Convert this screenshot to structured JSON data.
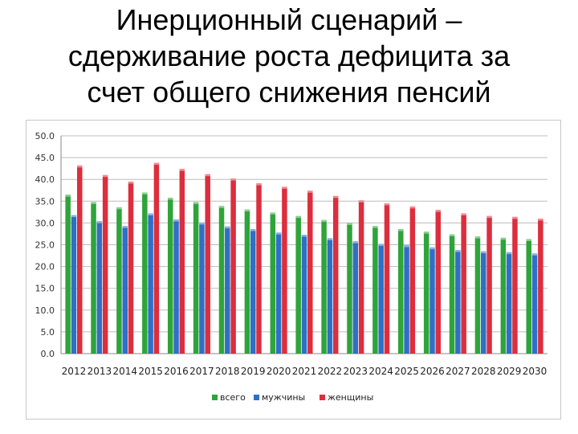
{
  "title_lines": [
    "Инерционный сценарий –",
    "сдерживание роста дефицита за",
    "счет общего снижения пенсий"
  ],
  "chart_data": {
    "type": "bar",
    "categories": [
      "2012",
      "2013",
      "2014",
      "2015",
      "2016",
      "2017",
      "2018",
      "2019",
      "2020",
      "2021",
      "2022",
      "2023",
      "2024",
      "2025",
      "2026",
      "2027",
      "2028",
      "2029",
      "2030"
    ],
    "series": [
      {
        "name": "всего",
        "color": "#2ea43a",
        "values": [
          36.5,
          34.8,
          33.6,
          37.0,
          35.8,
          34.8,
          33.9,
          33.1,
          32.4,
          31.6,
          30.7,
          30.0,
          29.3,
          28.6,
          28.0,
          27.4,
          26.9,
          26.6,
          26.3
        ]
      },
      {
        "name": "мужчины",
        "color": "#2f6fc4",
        "values": [
          31.8,
          30.4,
          29.3,
          32.2,
          30.8,
          30.1,
          29.2,
          28.6,
          27.8,
          27.3,
          26.5,
          25.8,
          25.2,
          24.9,
          24.4,
          23.8,
          23.5,
          23.3,
          23.0
        ]
      },
      {
        "name": "женщины",
        "color": "#dc2e3e",
        "values": [
          43.2,
          41.0,
          39.5,
          43.8,
          42.4,
          41.2,
          40.2,
          39.1,
          38.3,
          37.4,
          36.2,
          35.2,
          34.5,
          33.8,
          33.0,
          32.2,
          31.6,
          31.4,
          31.0
        ]
      }
    ],
    "y_ticks": [
      "0.0",
      "5.0",
      "10.0",
      "15.0",
      "20.0",
      "25.0",
      "30.0",
      "35.0",
      "40.0",
      "45.0",
      "50.0"
    ],
    "ylim": [
      0,
      50
    ],
    "grid": true,
    "legend_position": "bottom"
  }
}
